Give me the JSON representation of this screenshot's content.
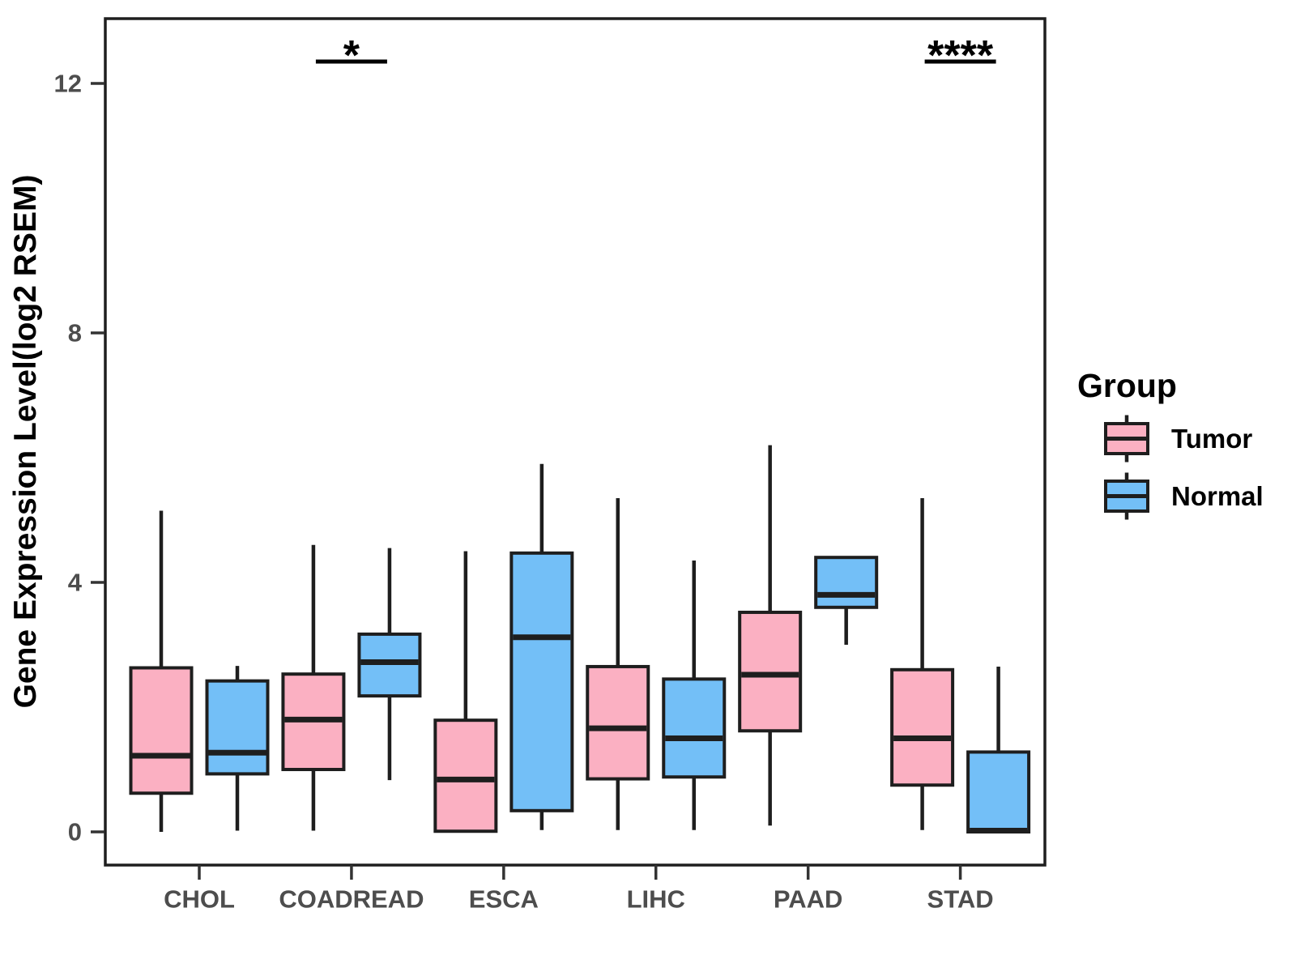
{
  "chart_data": {
    "type": "boxplot",
    "title": "",
    "xlabel": "",
    "ylabel": "Gene Expression Level(log2 RSEM)",
    "ylim": [
      -0.53,
      13.04
    ],
    "yticks": [
      0,
      4,
      8,
      12
    ],
    "grid": false,
    "categories": [
      "CHOL",
      "COADREAD",
      "ESCA",
      "LIHC",
      "PAAD",
      "STAD"
    ],
    "series": [
      {
        "name": "Tumor",
        "fill": "#FBB0C2",
        "boxes": [
          {
            "whislo": 0.0,
            "q1": 0.62,
            "med": 1.22,
            "q3": 2.63,
            "whishi": 5.15
          },
          {
            "whislo": 0.02,
            "q1": 1.0,
            "med": 1.8,
            "q3": 2.53,
            "whishi": 4.6
          },
          {
            "whislo": 0.01,
            "q1": 0.01,
            "med": 0.84,
            "q3": 1.79,
            "whishi": 4.5
          },
          {
            "whislo": 0.03,
            "q1": 0.85,
            "med": 1.66,
            "q3": 2.65,
            "whishi": 5.35
          },
          {
            "whislo": 0.1,
            "q1": 1.62,
            "med": 2.52,
            "q3": 3.52,
            "whishi": 6.2
          },
          {
            "whislo": 0.03,
            "q1": 0.75,
            "med": 1.5,
            "q3": 2.6,
            "whishi": 5.35
          }
        ]
      },
      {
        "name": "Normal",
        "fill": "#73BFF7",
        "boxes": [
          {
            "whislo": 0.02,
            "q1": 0.93,
            "med": 1.27,
            "q3": 2.42,
            "whishi": 2.66
          },
          {
            "whislo": 0.83,
            "q1": 2.18,
            "med": 2.72,
            "q3": 3.17,
            "whishi": 4.55
          },
          {
            "whislo": 0.03,
            "q1": 0.34,
            "med": 3.12,
            "q3": 4.47,
            "whishi": 5.9
          },
          {
            "whislo": 0.03,
            "q1": 0.88,
            "med": 1.5,
            "q3": 2.45,
            "whishi": 4.35
          },
          {
            "whislo": 3.0,
            "q1": 3.6,
            "med": 3.8,
            "q3": 4.4,
            "whishi": 4.4
          },
          {
            "whislo": 0.0,
            "q1": 0.0,
            "med": 0.02,
            "q3": 1.28,
            "whishi": 2.65
          }
        ]
      }
    ],
    "annotations": [
      {
        "category": "COADREAD",
        "label": "*",
        "bar_y": 12.35
      },
      {
        "category": "STAD",
        "label": "****",
        "bar_y": 12.35
      }
    ],
    "legend": {
      "title": "Group",
      "position": "right",
      "entries": [
        "Tumor",
        "Normal"
      ]
    },
    "colors": {
      "tumor": "#FBB0C2",
      "normal": "#73BFF7",
      "line": "#1E1E1E",
      "tick_text": "#4D4D4D",
      "axis_title_text": "#000000"
    }
  }
}
